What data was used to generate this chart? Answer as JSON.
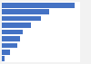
{
  "values": [
    28,
    18,
    15,
    11,
    8,
    7,
    6,
    3,
    1
  ],
  "bar_color": "#4472c4",
  "background_color": "#f2f2f2",
  "plot_bg_color": "#ffffff",
  "ylim": [
    -0.5,
    8.5
  ],
  "xlim": [
    0,
    30
  ]
}
